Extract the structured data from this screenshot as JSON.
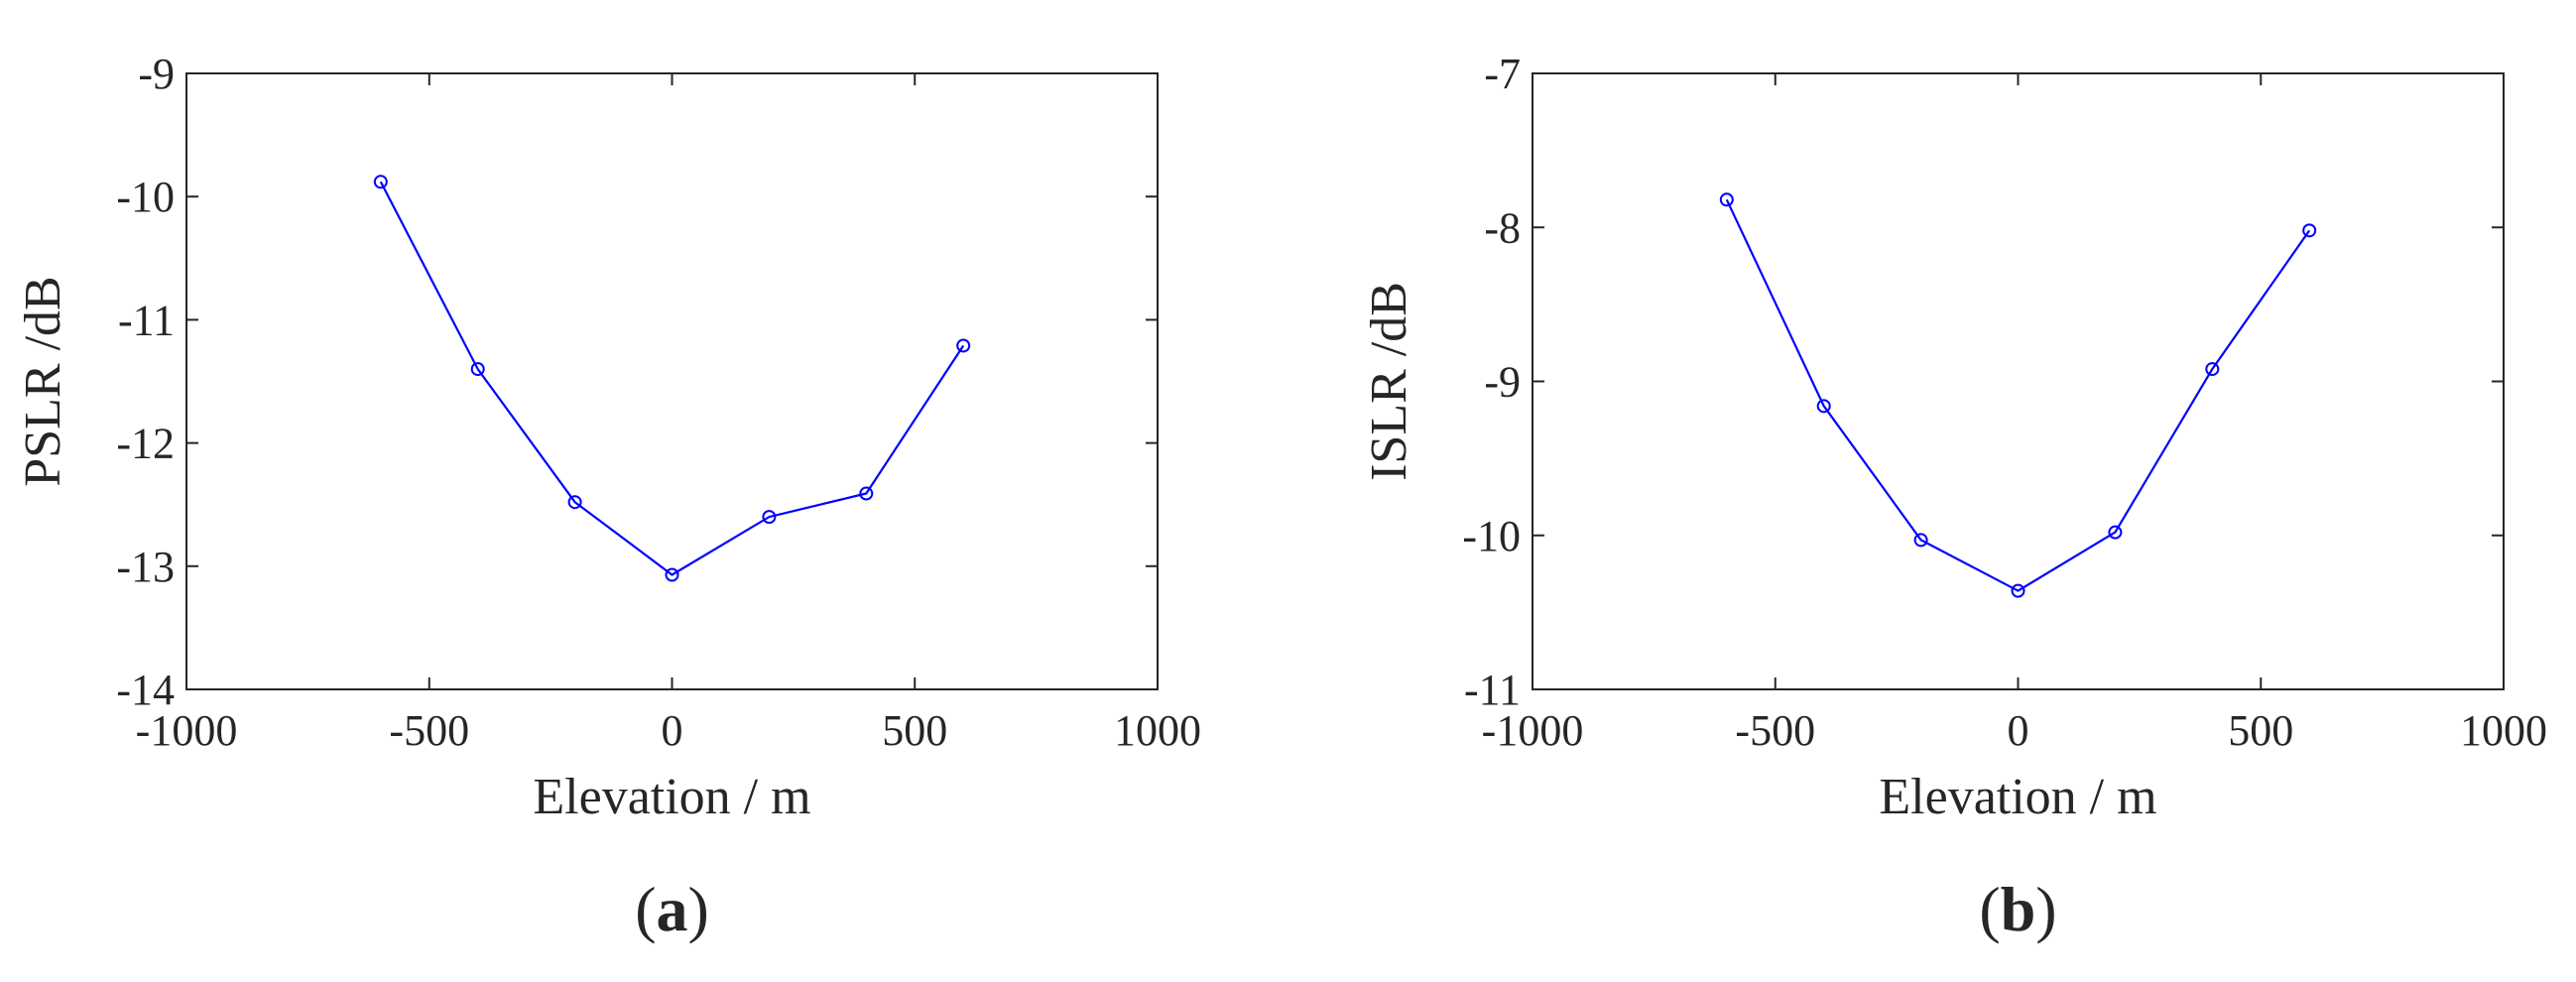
{
  "chart_data": [
    {
      "type": "line",
      "panel_label": "a",
      "xlabel": "Elevation / m",
      "ylabel": "PSLR /dB",
      "xlim": [
        -1000,
        1000
      ],
      "ylim": [
        -14,
        -9
      ],
      "xticks": [
        -1000,
        -500,
        0,
        500,
        1000
      ],
      "yticks": [
        -9,
        -10,
        -11,
        -12,
        -13,
        -14
      ],
      "xtick_labels": [
        "-1000",
        "-500",
        "0",
        "500",
        "1000"
      ],
      "ytick_labels": [
        "-9",
        "-10",
        "-11",
        "-12",
        "-13",
        "-14"
      ],
      "grid": false,
      "legend": "none",
      "marker": "circle",
      "color": "#0000ff",
      "series": [
        {
          "x": [
            -600,
            -400,
            -200,
            0,
            200,
            400,
            600
          ],
          "y": [
            -9.88,
            -11.4,
            -12.48,
            -13.07,
            -12.6,
            -12.41,
            -11.21
          ]
        }
      ]
    },
    {
      "type": "line",
      "panel_label": "b",
      "xlabel": "Elevation / m",
      "ylabel": "ISLR /dB",
      "xlim": [
        -1000,
        1000
      ],
      "ylim": [
        -11,
        -7
      ],
      "xticks": [
        -1000,
        -500,
        0,
        500,
        1000
      ],
      "yticks": [
        -7,
        -8,
        -9,
        -10,
        -11
      ],
      "xtick_labels": [
        "-1000",
        "-500",
        "0",
        "500",
        "1000"
      ],
      "ytick_labels": [
        "-7",
        "-8",
        "-9",
        "-10",
        "-11"
      ],
      "grid": false,
      "legend": "none",
      "marker": "circle",
      "color": "#0000ff",
      "series": [
        {
          "x": [
            -600,
            -400,
            -200,
            0,
            200,
            400,
            600
          ],
          "y": [
            -7.82,
            -9.16,
            -10.03,
            -10.36,
            -9.98,
            -8.92,
            -8.02
          ]
        }
      ]
    }
  ]
}
